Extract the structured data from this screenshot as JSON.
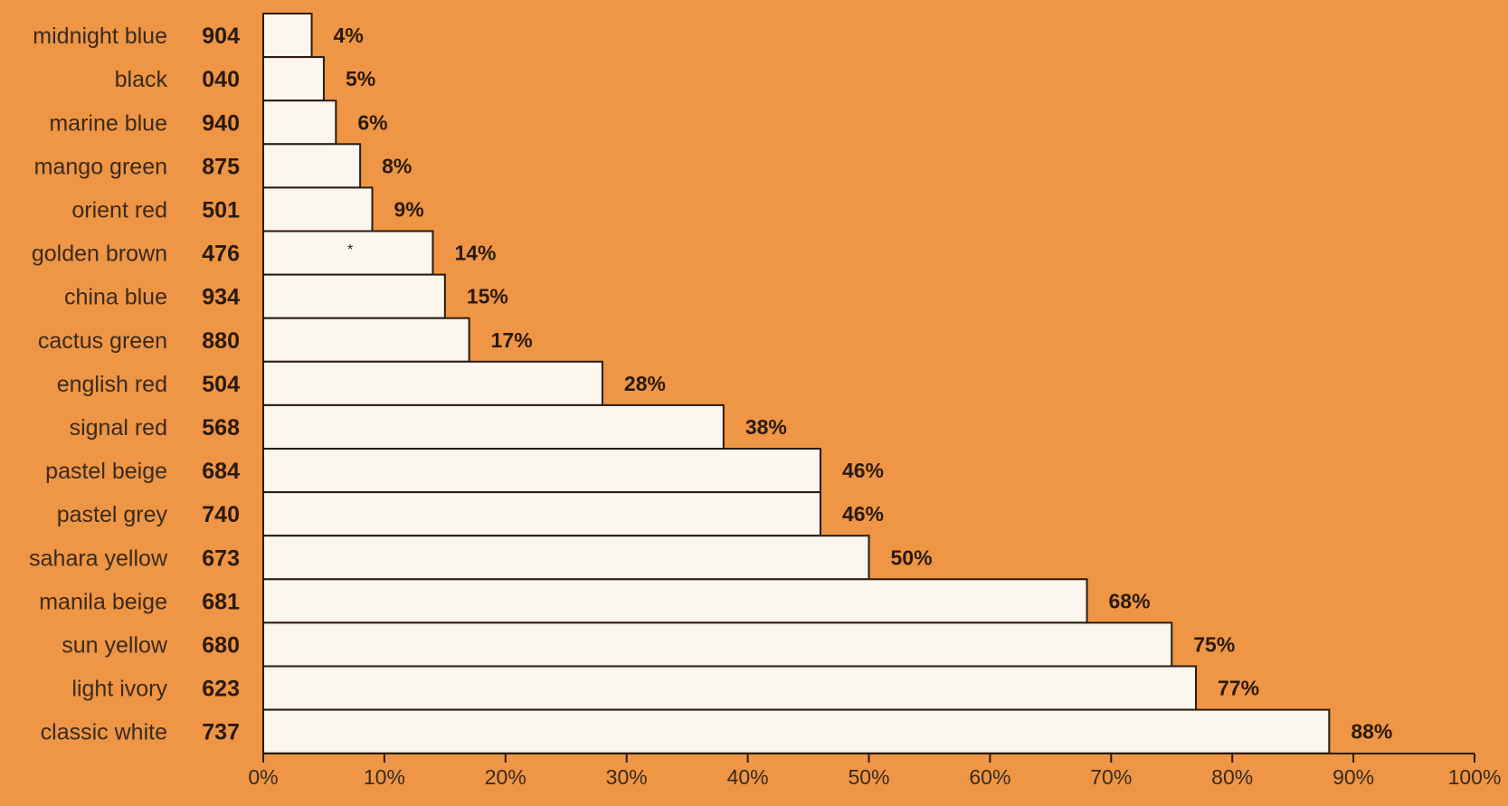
{
  "chart_data": {
    "type": "bar",
    "orientation": "horizontal",
    "categories": [
      "midnight blue",
      "black",
      "marine blue",
      "mango green",
      "orient red",
      "golden brown",
      "china blue",
      "cactus green",
      "english red",
      "signal red",
      "pastel beige",
      "pastel grey",
      "sahara yellow",
      "manila beige",
      "sun yellow",
      "light ivory",
      "classic white"
    ],
    "codes": [
      "904",
      "040",
      "940",
      "875",
      "501",
      "476",
      "934",
      "880",
      "504",
      "568",
      "684",
      "740",
      "673",
      "681",
      "680",
      "623",
      "737"
    ],
    "values": [
      4,
      5,
      6,
      8,
      9,
      14,
      15,
      17,
      28,
      38,
      46,
      46,
      50,
      68,
      75,
      77,
      88
    ],
    "value_labels": [
      "4%",
      "5%",
      "6%",
      "8%",
      "9%",
      "14%",
      "15%",
      "17%",
      "28%",
      "38%",
      "46%",
      "46%",
      "50%",
      "68%",
      "75%",
      "77%",
      "88%"
    ],
    "x_ticks": [
      "0%",
      "10%",
      "20%",
      "30%",
      "40%",
      "50%",
      "60%",
      "70%",
      "80%",
      "90%",
      "100%"
    ],
    "xlim": [
      0,
      100
    ],
    "grid": false,
    "title": "",
    "xlabel": "",
    "ylabel": "",
    "colors": {
      "background": "#EE9646",
      "bar_fill": "#FBF6EE",
      "outline": "#2a1a0e",
      "text": "#2a1a0e"
    }
  }
}
